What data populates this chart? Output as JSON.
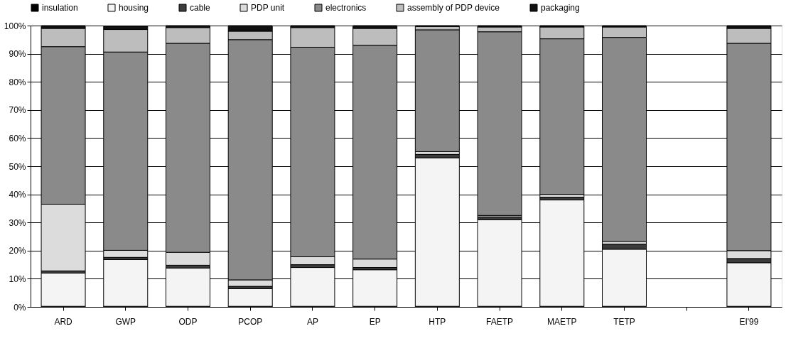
{
  "chart_data": {
    "type": "bar",
    "stacked": true,
    "categories": [
      "ARD",
      "GWP",
      "ODP",
      "PCOP",
      "AP",
      "EP",
      "HTP",
      "FAETP",
      "MAETP",
      "TETP",
      null,
      "EI'99"
    ],
    "series": [
      {
        "name": "insulation",
        "color": "#000000",
        "values": [
          0.2,
          0.2,
          0.2,
          0.2,
          0.2,
          0.2,
          0.2,
          0.2,
          0.2,
          0.2,
          null,
          0.2
        ]
      },
      {
        "name": "housing",
        "color": "#f4f4f4",
        "values": [
          11.8,
          16.6,
          13.6,
          6.3,
          13.8,
          13.0,
          52.8,
          30.8,
          37.8,
          20.3,
          null,
          15.5
        ]
      },
      {
        "name": "cable",
        "color": "#3c3c3c",
        "values": [
          0.8,
          0.8,
          1.0,
          0.8,
          1.0,
          0.8,
          1.2,
          1.0,
          1.0,
          1.8,
          null,
          1.5
        ]
      },
      {
        "name": "PDP unit",
        "color": "#dcdcdc",
        "values": [
          23.7,
          2.5,
          4.6,
          2.3,
          2.8,
          3.0,
          1.0,
          0.5,
          1.0,
          1.0,
          null,
          2.8
        ]
      },
      {
        "name": "electronics",
        "color": "#8a8a8a",
        "values": [
          56.0,
          70.5,
          74.3,
          85.4,
          74.5,
          76.0,
          43.3,
          65.3,
          55.3,
          72.5,
          null,
          73.7
        ]
      },
      {
        "name": "assembly of PDP device",
        "color": "#bdbdbd",
        "values": [
          6.5,
          8.0,
          5.6,
          3.0,
          7.0,
          6.0,
          1.2,
          1.7,
          4.2,
          3.7,
          null,
          5.3
        ]
      },
      {
        "name": "packaging",
        "color": "#111111",
        "values": [
          1.0,
          1.2,
          0.7,
          2.0,
          0.7,
          1.0,
          0.3,
          0.5,
          0.5,
          0.5,
          null,
          1.0
        ]
      }
    ],
    "ylim": [
      0,
      100
    ],
    "yticks": [
      {
        "value": 0,
        "label": "0%"
      },
      {
        "value": 10,
        "label": "10%"
      },
      {
        "value": 20,
        "label": "20%"
      },
      {
        "value": 30,
        "label": "30%"
      },
      {
        "value": 40,
        "label": "40%"
      },
      {
        "value": 50,
        "label": "50%"
      },
      {
        "value": 60,
        "label": "60%"
      },
      {
        "value": 70,
        "label": "70%"
      },
      {
        "value": 80,
        "label": "80%"
      },
      {
        "value": 90,
        "label": "90%"
      },
      {
        "value": 100,
        "label": "100%"
      }
    ],
    "grid": "y",
    "legend": "top"
  }
}
